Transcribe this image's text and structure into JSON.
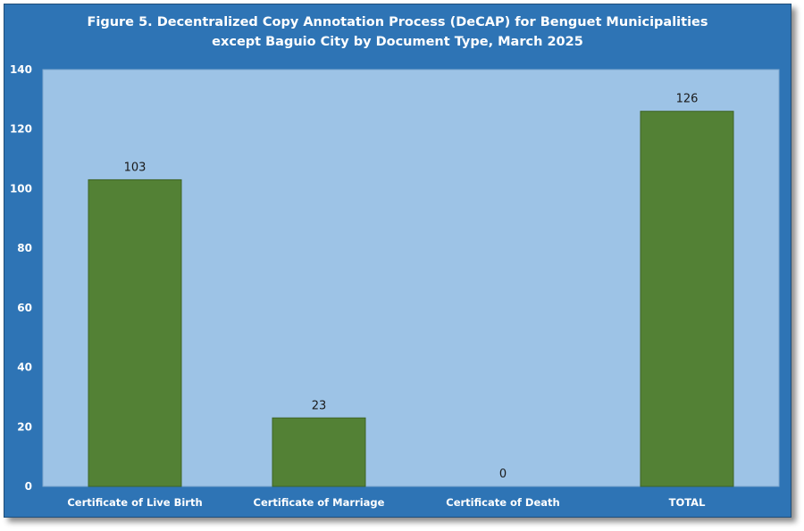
{
  "chart_data": {
    "type": "bar",
    "title_line1": "Figure 5. Decentralized Copy Annotation Process (DeCAP) for Benguet Municipalities",
    "title_line2": "except Baguio City by Document Type, March 2025",
    "categories": [
      "Certificate of Live Birth",
      "Certificate of Marriage",
      "Certificate of Death",
      "TOTAL"
    ],
    "values": [
      103,
      23,
      0,
      126
    ],
    "data_labels": [
      "103",
      "23",
      "0",
      "126"
    ],
    "y_ticks": [
      "0",
      "20",
      "40",
      "60",
      "80",
      "100",
      "120",
      "140"
    ],
    "ylim": [
      0,
      140
    ],
    "grid": false,
    "legend": "none",
    "colors": {
      "frame": "#2e74b5",
      "plot_area": "#9dc3e6",
      "bar": "#538135"
    }
  }
}
